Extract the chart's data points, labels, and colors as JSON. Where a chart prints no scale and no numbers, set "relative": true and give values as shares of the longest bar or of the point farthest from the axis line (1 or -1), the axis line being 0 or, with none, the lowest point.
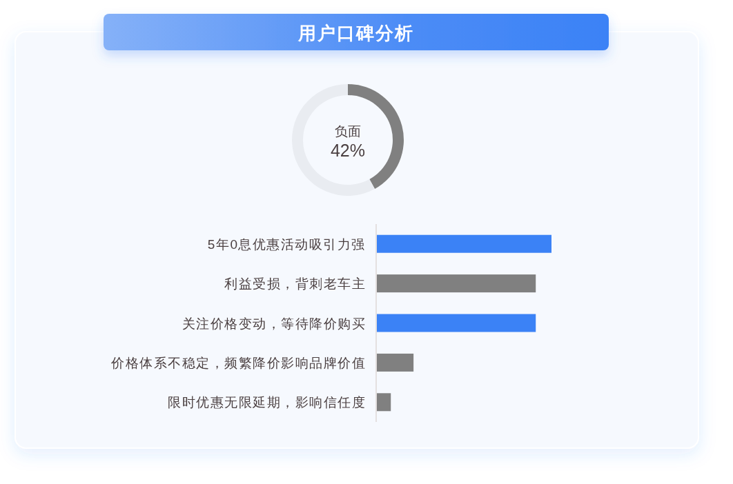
{
  "chart_data": [
    {
      "type": "donut",
      "title": "用户口碑分析",
      "categories": [
        "负面",
        null
      ],
      "values": [
        42,
        58
      ],
      "colors": [
        "#808080",
        "#e9ecf1"
      ],
      "value_labels": [
        "42%",
        null
      ]
    },
    {
      "type": "bar",
      "orientation": "horizontal",
      "relative": true,
      "categories": [
        "5年0息优惠活动吸引力强",
        "利益受损，背刺老车主",
        "关注价格变动，等待降价购买",
        "价格体系不稳定，频繁降价影响品牌价值",
        "限时优惠无限延期，影响信任度"
      ],
      "values": [
        1,
        0.91,
        0.91,
        0.21,
        0.08
      ],
      "colors": [
        "#3b82f6",
        "#808080",
        "#3b82f6",
        "#808080",
        "#808080"
      ]
    }
  ]
}
